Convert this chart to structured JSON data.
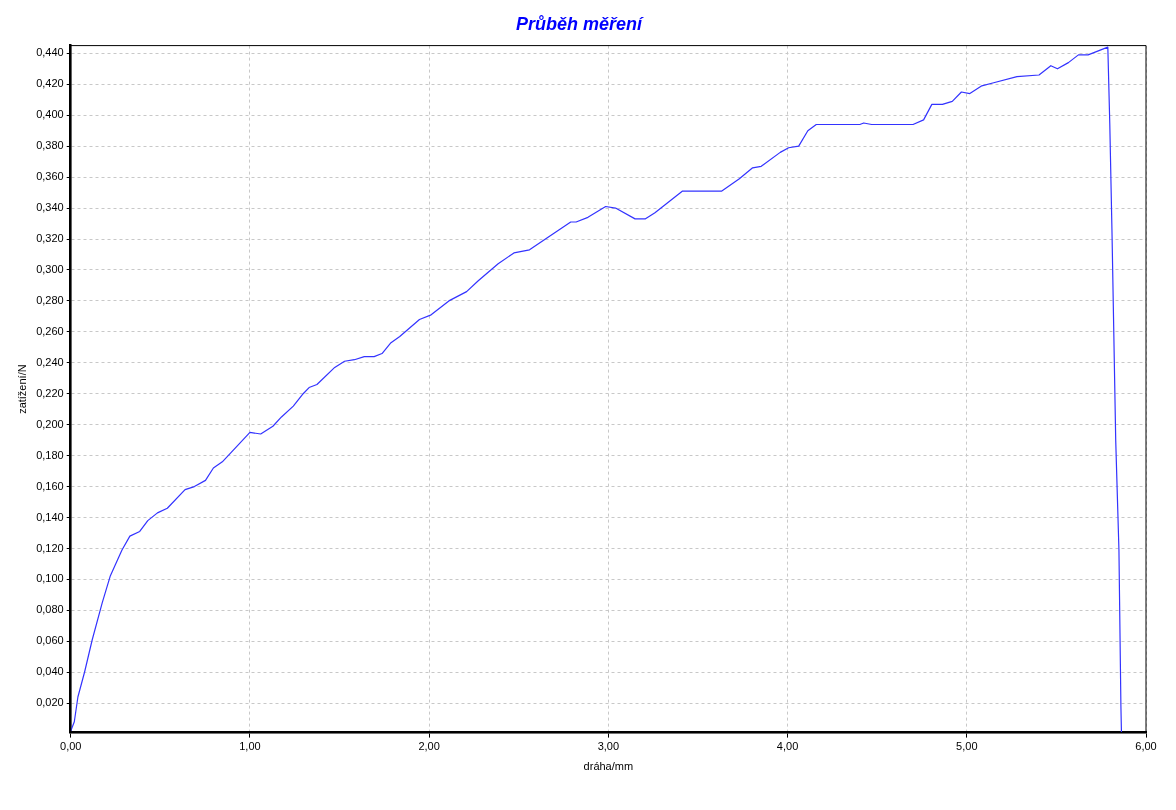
{
  "chart_data": {
    "type": "line",
    "title": "Průběh měření",
    "xlabel": "dráha/mm",
    "ylabel": "zatížení/N",
    "x": [
      0,
      0.02,
      0.04,
      0.077,
      0.12,
      0.176,
      0.22,
      0.286,
      0.33,
      0.385,
      0.43,
      0.484,
      0.539,
      0.638,
      0.69,
      0.752,
      0.796,
      0.846,
      1.0,
      1.06,
      1.128,
      1.176,
      1.242,
      1.297,
      1.33,
      1.374,
      1.473,
      1.528,
      1.583,
      1.638,
      1.693,
      1.737,
      1.787,
      1.836,
      1.946,
      2.011,
      2.11,
      2.209,
      2.274,
      2.385,
      2.473,
      2.56,
      2.649,
      2.79,
      2.82,
      2.886,
      2.985,
      3.04,
      3.149,
      3.205,
      3.26,
      3.414,
      3.457,
      3.633,
      3.731,
      3.805,
      3.853,
      3.959,
      4.006,
      4.062,
      4.113,
      4.16,
      4.403,
      4.425,
      4.469,
      4.7,
      4.759,
      4.805,
      4.864,
      4.919,
      4.97,
      5.017,
      5.084,
      5.15,
      5.28,
      5.403,
      5.469,
      5.506,
      5.567,
      5.623,
      5.677,
      5.787,
      5.798,
      5.81,
      5.831,
      5.849,
      5.86,
      5.863
    ],
    "series": [
      {
        "color": "#3333ff",
        "values": [
          0.002,
          0.008,
          0.024,
          0.04,
          0.061,
          0.085,
          0.102,
          0.119,
          0.128,
          0.131,
          0.138,
          0.143,
          0.146,
          0.158,
          0.16,
          0.164,
          0.172,
          0.176,
          0.195,
          0.194,
          0.199,
          0.205,
          0.212,
          0.22,
          0.224,
          0.226,
          0.237,
          0.241,
          0.242,
          0.244,
          0.244,
          0.246,
          0.253,
          0.257,
          0.268,
          0.271,
          0.28,
          0.286,
          0.293,
          0.304,
          0.311,
          0.313,
          0.32,
          0.331,
          0.331,
          0.334,
          0.341,
          0.34,
          0.333,
          0.333,
          0.337,
          0.351,
          0.351,
          0.351,
          0.359,
          0.366,
          0.367,
          0.376,
          0.379,
          0.38,
          0.39,
          0.394,
          0.394,
          0.395,
          0.394,
          0.394,
          0.397,
          0.407,
          0.407,
          0.409,
          0.415,
          0.414,
          0.419,
          0.421,
          0.425,
          0.426,
          0.432,
          0.43,
          0.434,
          0.439,
          0.439,
          0.444,
          0.394,
          0.326,
          0.19,
          0.119,
          0.018,
          0.001
        ]
      }
    ],
    "xlim": [
      0,
      6
    ],
    "ylim": [
      0.001,
      0.445
    ],
    "xticks": [
      {
        "value": 0,
        "label": "0,00"
      },
      {
        "value": 1,
        "label": "1,00"
      },
      {
        "value": 2,
        "label": "2,00"
      },
      {
        "value": 3,
        "label": "3,00"
      },
      {
        "value": 4,
        "label": "4,00"
      },
      {
        "value": 5,
        "label": "5,00"
      },
      {
        "value": 6,
        "label": "6,00"
      }
    ],
    "yticks": [
      {
        "value": 0.02,
        "label": "0,020"
      },
      {
        "value": 0.04,
        "label": "0,040"
      },
      {
        "value": 0.06,
        "label": "0,060"
      },
      {
        "value": 0.08,
        "label": "0,080"
      },
      {
        "value": 0.1,
        "label": "0,100"
      },
      {
        "value": 0.12,
        "label": "0,120"
      },
      {
        "value": 0.14,
        "label": "0,140"
      },
      {
        "value": 0.16,
        "label": "0,160"
      },
      {
        "value": 0.18,
        "label": "0,180"
      },
      {
        "value": 0.2,
        "label": "0,200"
      },
      {
        "value": 0.22,
        "label": "0,220"
      },
      {
        "value": 0.24,
        "label": "0,240"
      },
      {
        "value": 0.26,
        "label": "0,260"
      },
      {
        "value": 0.28,
        "label": "0,280"
      },
      {
        "value": 0.3,
        "label": "0,300"
      },
      {
        "value": 0.32,
        "label": "0,320"
      },
      {
        "value": 0.34,
        "label": "0,340"
      },
      {
        "value": 0.36,
        "label": "0,360"
      },
      {
        "value": 0.38,
        "label": "0,380"
      },
      {
        "value": 0.4,
        "label": "0,400"
      },
      {
        "value": 0.42,
        "label": "0,420"
      },
      {
        "value": 0.44,
        "label": "0,440"
      }
    ],
    "grid": true,
    "marker": "none",
    "line_style": "solid"
  }
}
